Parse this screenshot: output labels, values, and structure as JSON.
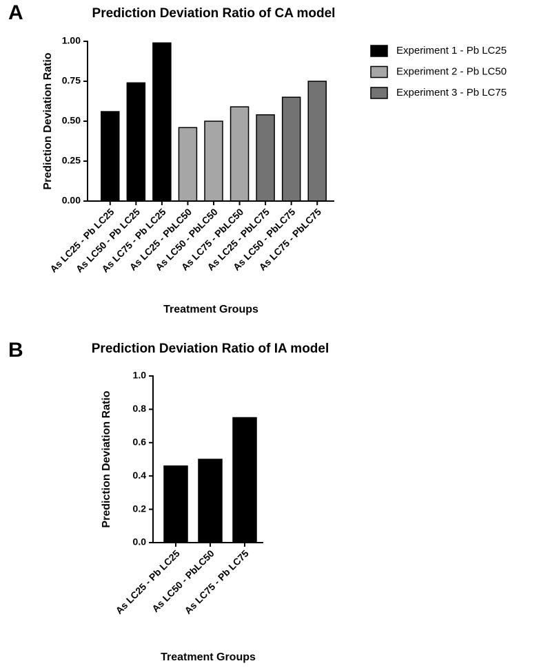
{
  "chart_data": [
    {
      "type": "bar",
      "panel": "A",
      "title": "Prediction Deviation Ratio of CA model",
      "x_label": "Treatment Groups",
      "y_label": "Prediction Deviation Ratio",
      "categories": [
        "As LC25 - Pb LC25",
        "As LC50 - Pb LC25",
        "As LC75 - Pb LC25",
        "As LC25 - PbLC50",
        "As LC50 - PbLC50",
        "As LC75 - PbLC50",
        "As LC25 - PbLC75",
        "As LC50 - PbLC75",
        "As LC75 - PbLC75"
      ],
      "series": [
        {
          "name": "Experiment 1 - Pb LC25",
          "color": "#000000",
          "values": [
            0.56,
            0.74,
            0.99,
            null,
            null,
            null,
            null,
            null,
            null
          ]
        },
        {
          "name": "Experiment 2 - Pb LC50",
          "color": "#a6a6a6",
          "values": [
            null,
            null,
            null,
            0.46,
            0.5,
            0.59,
            null,
            null,
            null
          ]
        },
        {
          "name": "Experiment 3 - Pb LC75",
          "color": "#737373",
          "values": [
            null,
            null,
            null,
            null,
            null,
            null,
            0.54,
            0.65,
            0.75
          ]
        }
      ],
      "ylim": [
        0,
        1
      ],
      "yticks": [
        {
          "value": 0,
          "label": "0.00"
        },
        {
          "value": 0.25,
          "label": "0.25"
        },
        {
          "value": 0.5,
          "label": "0.50"
        },
        {
          "value": 0.75,
          "label": "0.75"
        },
        {
          "value": 1,
          "label": "1.00"
        }
      ],
      "legend": "right"
    },
    {
      "type": "bar",
      "panel": "B",
      "title": "Prediction Deviation Ratio of IA model",
      "x_label": "Treatment Groups",
      "y_label": "Prediction Deviation Ratio",
      "categories": [
        "As LC25 - Pb LC25",
        "As LC50 - PbLC50",
        "As LC75 - Pb LC75"
      ],
      "values": [
        0.46,
        0.5,
        0.75
      ],
      "color": "#000000",
      "ylim": [
        0,
        1
      ],
      "yticks": [
        {
          "value": 0,
          "label": "0.0"
        },
        0.2,
        0.4,
        0.6,
        0.8,
        {
          "value": 1,
          "label": "1.0"
        }
      ]
    }
  ]
}
